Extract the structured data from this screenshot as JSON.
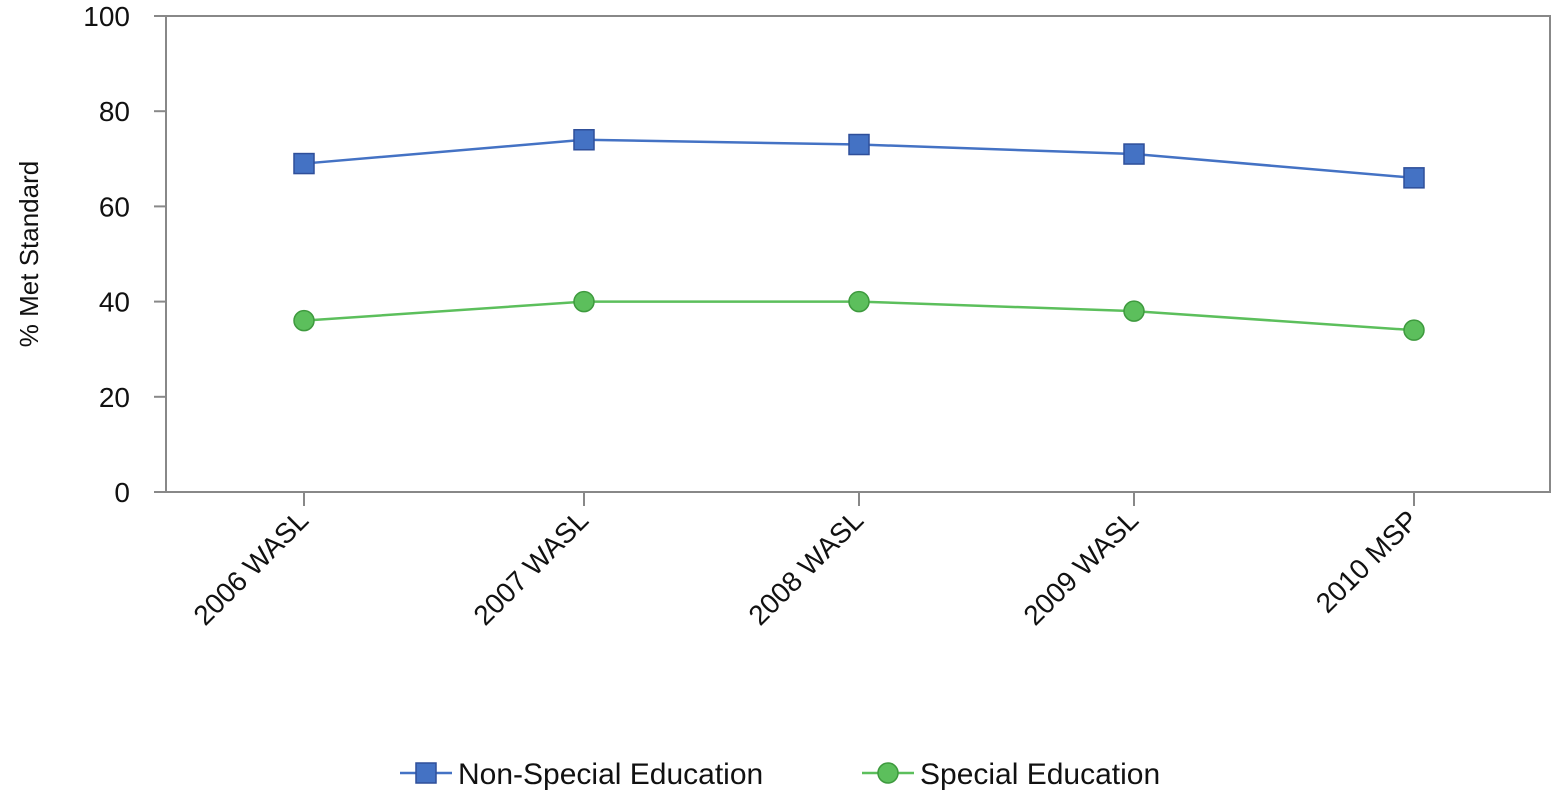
{
  "chart_data": {
    "type": "line",
    "title": "",
    "xlabel": "",
    "ylabel": "% Met Standard",
    "ylim": [
      0,
      100
    ],
    "yticks": [
      0,
      20,
      40,
      60,
      80,
      100
    ],
    "grid": false,
    "legend_position": "bottom-center",
    "categories": [
      "2006 WASL",
      "2007 WASL",
      "2008 WASL",
      "2009 WASL",
      "2010 MSP"
    ],
    "series": [
      {
        "name": "Non-Special Education",
        "values": [
          69,
          74,
          73,
          71,
          66
        ],
        "color": "#4472C4",
        "marker": "square"
      },
      {
        "name": "Special Education",
        "values": [
          36,
          40,
          40,
          38,
          34
        ],
        "color": "#5CBF5C",
        "marker": "circle"
      }
    ]
  }
}
